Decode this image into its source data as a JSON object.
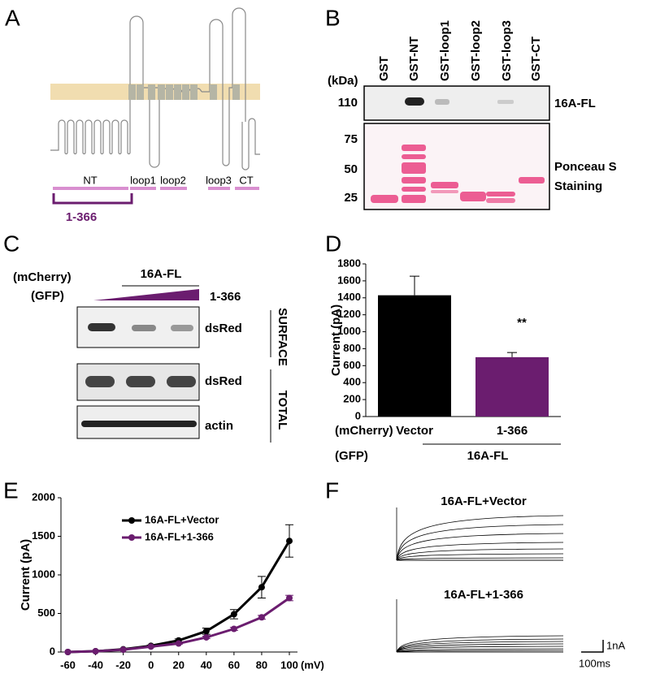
{
  "panel_a": {
    "label": "A",
    "regions": [
      "NT",
      "loop1",
      "loop2",
      "loop3",
      "CT"
    ],
    "fragment": "1-366"
  },
  "panel_b": {
    "label": "B",
    "lanes": [
      "GST",
      "GST-NT",
      "GST-loop1",
      "GST-loop2",
      "GST-loop3",
      "GST-CT"
    ],
    "unit": "(kDa)",
    "markers": [
      "110",
      "75",
      "50",
      "25"
    ],
    "blot_label": "16A-FL",
    "stain_label": [
      "Ponceau S",
      "Staining"
    ]
  },
  "panel_c": {
    "label": "C",
    "row_labels": [
      "(mCherry)",
      "(GFP)"
    ],
    "construct": "16A-FL",
    "titrant": "1-366",
    "blots": [
      "dsRed",
      "dsRed",
      "actin"
    ],
    "fractions": [
      "SURFACE",
      "TOTAL"
    ]
  },
  "panel_f": {
    "label": "F",
    "traces": [
      "16A-FL+Vector",
      "16A-FL+1-366"
    ],
    "scale_y": "1nA",
    "scale_x": "100ms"
  },
  "chart_data": [
    {
      "type": "bar",
      "panel_label": "D",
      "y_label": "Current (pA)",
      "categories": [
        "Vector",
        "1-366"
      ],
      "values": [
        1430,
        700
      ],
      "errors": [
        225,
        55
      ],
      "colors": [
        "#000000",
        "#6b1d6f"
      ],
      "ylim": [
        0,
        1800
      ],
      "yticks": [
        0,
        200,
        400,
        600,
        800,
        1000,
        1200,
        1400,
        1600,
        1800
      ],
      "annotation": "**",
      "row_labels": [
        "(mCherry)",
        "(GFP)"
      ],
      "group_label": "16A-FL"
    },
    {
      "type": "line",
      "panel_label": "E",
      "y_label": "Current (pA)",
      "x_label": "(mV)",
      "x": [
        -60,
        -40,
        -20,
        0,
        20,
        40,
        60,
        80,
        100
      ],
      "series": [
        {
          "name": "16A-FL+Vector",
          "color": "#000000",
          "values": [
            0,
            10,
            35,
            80,
            150,
            270,
            490,
            840,
            1440
          ],
          "errors": [
            0,
            5,
            8,
            10,
            20,
            40,
            60,
            140,
            210
          ]
        },
        {
          "name": "16A-FL+1-366",
          "color": "#6b1d6f",
          "values": [
            0,
            10,
            30,
            70,
            110,
            190,
            300,
            450,
            700
          ],
          "errors": [
            0,
            3,
            5,
            8,
            10,
            15,
            20,
            25,
            35
          ]
        }
      ],
      "xlim": [
        -65,
        100
      ],
      "ylim": [
        0,
        2000
      ],
      "xticks": [
        -60,
        -40,
        -20,
        0,
        20,
        40,
        60,
        80,
        100
      ],
      "yticks": [
        0,
        500,
        1000,
        1500,
        2000
      ],
      "legend": "upper-left"
    }
  ]
}
